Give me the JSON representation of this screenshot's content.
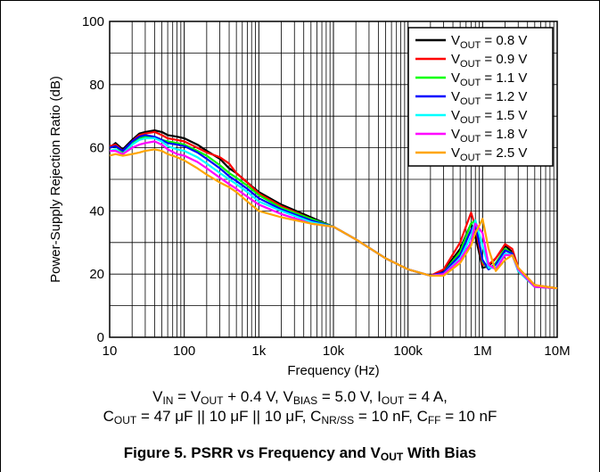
{
  "chart_data": {
    "type": "line",
    "xscale": "log",
    "xlim": [
      10,
      10000000
    ],
    "ylim": [
      0,
      100
    ],
    "xlabel": "Frequency (Hz)",
    "ylabel": "Power-Supply Rejection Ratio (dB)",
    "x_ticks": [
      10,
      100,
      1000,
      10000,
      100000,
      1000000,
      10000000
    ],
    "x_tick_labels": [
      "10",
      "100",
      "1k",
      "10k",
      "100k",
      "1M",
      "10M"
    ],
    "y_ticks": [
      0,
      20,
      40,
      60,
      80,
      100
    ],
    "y_tick_labels": [
      "0",
      "20",
      "40",
      "60",
      "80",
      "100"
    ],
    "grid": true,
    "legend_position": "top-right",
    "series": [
      {
        "name": "V_OUT = 0.8 V",
        "color": "#000000",
        "x": [
          10,
          12,
          15,
          20,
          25,
          30,
          40,
          50,
          60,
          80,
          100,
          150,
          200,
          300,
          400,
          500,
          700,
          1000,
          2000,
          5000,
          10000,
          20000,
          50000,
          100000,
          200000,
          300000,
          500000,
          700000,
          800000,
          1000000,
          1200000,
          1500000,
          2000000,
          2500000,
          3000000,
          5000000,
          10000000
        ],
        "y": [
          60,
          61.5,
          59.5,
          62.5,
          64.5,
          65,
          65.5,
          65,
          64,
          63.5,
          63,
          61,
          59,
          56.5,
          53.5,
          52,
          49,
          46,
          42,
          38,
          35,
          31,
          25,
          21.5,
          19.5,
          21,
          28,
          36,
          32,
          22,
          22.5,
          25,
          29,
          27,
          21,
          16.5,
          15.5
        ]
      },
      {
        "name": "V_OUT = 0.9 V",
        "color": "#ff0000",
        "x": [
          10,
          12,
          15,
          20,
          25,
          30,
          40,
          50,
          60,
          80,
          100,
          150,
          200,
          300,
          400,
          500,
          700,
          1000,
          2000,
          5000,
          10000,
          20000,
          50000,
          100000,
          200000,
          300000,
          500000,
          700000,
          800000,
          1000000,
          1200000,
          1500000,
          2000000,
          2500000,
          3000000,
          5000000,
          10000000
        ],
        "y": [
          60.5,
          61,
          59,
          62,
          64,
          64.5,
          65,
          64,
          63,
          62.5,
          62,
          60,
          58.5,
          57,
          55,
          52,
          49,
          45.5,
          41.5,
          37.5,
          35,
          31,
          25,
          21.5,
          19.5,
          21.5,
          30,
          39.5,
          35,
          23,
          23,
          25,
          29.5,
          28,
          22,
          16.5,
          15.5
        ]
      },
      {
        "name": "V_OUT = 1.1 V",
        "color": "#00ff00",
        "x": [
          10,
          12,
          15,
          20,
          25,
          30,
          40,
          50,
          60,
          80,
          100,
          150,
          200,
          300,
          400,
          500,
          700,
          1000,
          2000,
          5000,
          10000,
          20000,
          50000,
          100000,
          200000,
          300000,
          500000,
          700000,
          800000,
          1000000,
          1200000,
          1500000,
          2000000,
          2500000,
          3000000,
          5000000,
          10000000
        ],
        "y": [
          60,
          60.5,
          58.5,
          61.5,
          63,
          63.5,
          63.5,
          62.5,
          62,
          61.5,
          61,
          59,
          57.5,
          54.5,
          52,
          50.5,
          48,
          45,
          41,
          37.5,
          35,
          31,
          25,
          21.5,
          19.5,
          20.5,
          27,
          36,
          37,
          24,
          21.5,
          23.5,
          28,
          26.5,
          21,
          16,
          15.5
        ]
      },
      {
        "name": "V_OUT = 1.2 V",
        "color": "#0000ff",
        "x": [
          10,
          12,
          15,
          20,
          25,
          30,
          40,
          50,
          60,
          80,
          100,
          150,
          200,
          300,
          400,
          500,
          700,
          1000,
          2000,
          5000,
          10000,
          20000,
          50000,
          100000,
          200000,
          300000,
          500000,
          700000,
          800000,
          1000000,
          1200000,
          1500000,
          2000000,
          2500000,
          3000000,
          5000000,
          10000000
        ],
        "y": [
          60,
          60.5,
          59,
          62,
          63.5,
          64,
          63.5,
          62.5,
          61.5,
          61,
          60.5,
          58.5,
          56.5,
          53.5,
          51,
          49.5,
          47,
          44,
          40.5,
          37,
          35,
          31,
          25,
          21.5,
          19.5,
          20.5,
          26,
          34,
          36,
          24.5,
          21.5,
          23,
          27.5,
          26.5,
          21,
          16,
          15.5
        ]
      },
      {
        "name": "V_OUT = 1.5 V",
        "color": "#00ffff",
        "x": [
          10,
          12,
          15,
          20,
          25,
          30,
          40,
          50,
          60,
          80,
          100,
          150,
          200,
          300,
          400,
          500,
          700,
          1000,
          2000,
          5000,
          10000,
          20000,
          50000,
          100000,
          200000,
          300000,
          500000,
          700000,
          800000,
          1000000,
          1200000,
          1500000,
          2000000,
          2500000,
          3000000,
          5000000,
          10000000
        ],
        "y": [
          59,
          59.5,
          58,
          61,
          62.5,
          63,
          63,
          62,
          60.5,
          59.5,
          59,
          57,
          55,
          52,
          50,
          48.5,
          46,
          43,
          40,
          36.5,
          35,
          31,
          25,
          21.5,
          19.5,
          20,
          25,
          32,
          37,
          29,
          22,
          22,
          26.5,
          26,
          21,
          16,
          15.5
        ]
      },
      {
        "name": "V_OUT = 1.8 V",
        "color": "#ff00ff",
        "x": [
          10,
          12,
          15,
          20,
          25,
          30,
          40,
          50,
          60,
          80,
          100,
          150,
          200,
          300,
          400,
          500,
          700,
          1000,
          2000,
          5000,
          10000,
          20000,
          50000,
          100000,
          200000,
          300000,
          500000,
          700000,
          800000,
          1000000,
          1200000,
          1500000,
          2000000,
          2500000,
          3000000,
          5000000,
          10000000
        ],
        "y": [
          59,
          59,
          58,
          60,
          61,
          61.5,
          62,
          61,
          59.5,
          58,
          57.5,
          55.5,
          53.5,
          50.5,
          48.5,
          47,
          44.5,
          42,
          39,
          36,
          35,
          31,
          25,
          21.5,
          19.5,
          20,
          24.5,
          30,
          36,
          33,
          23,
          21.5,
          26,
          26,
          21.5,
          16,
          15.5
        ]
      },
      {
        "name": "V_OUT = 2.5 V",
        "color": "#ffa500",
        "x": [
          10,
          12,
          15,
          20,
          25,
          30,
          40,
          50,
          60,
          80,
          100,
          150,
          200,
          300,
          400,
          500,
          700,
          1000,
          2000,
          5000,
          10000,
          20000,
          50000,
          100000,
          200000,
          300000,
          500000,
          700000,
          800000,
          1000000,
          1200000,
          1500000,
          2000000,
          2500000,
          3000000,
          5000000,
          10000000
        ],
        "y": [
          57.5,
          58,
          57.5,
          58,
          58.5,
          59,
          59.5,
          59,
          58,
          57,
          56,
          53.5,
          51.5,
          49,
          47.5,
          46,
          43,
          40,
          38,
          36,
          35,
          31,
          25,
          21.5,
          19.5,
          19.5,
          23.5,
          29,
          33,
          37.5,
          28,
          21,
          24.5,
          26,
          22,
          16.5,
          15.5
        ]
      }
    ]
  },
  "caption": {
    "line1": {
      "a": "V",
      "a_sub": "IN",
      "b": " = V",
      "b_sub": "OUT",
      "c": " + 0.4 V, V",
      "c_sub": "BIAS",
      "d": " = 5.0 V, I",
      "d_sub": "OUT",
      "e": " = 4 A,"
    },
    "line2": {
      "a": "C",
      "a_sub": "OUT",
      "b": " = 47 μF || 10 μF || 10 μF, C",
      "b_sub": "NR/SS",
      "c": " = 10 nF, C",
      "c_sub": "FF",
      "d": " = 10 nF"
    }
  },
  "figure_title": {
    "text": "Figure 5. PSRR vs Frequency and V",
    "sub": "OUT",
    "tail": " With Bias"
  }
}
